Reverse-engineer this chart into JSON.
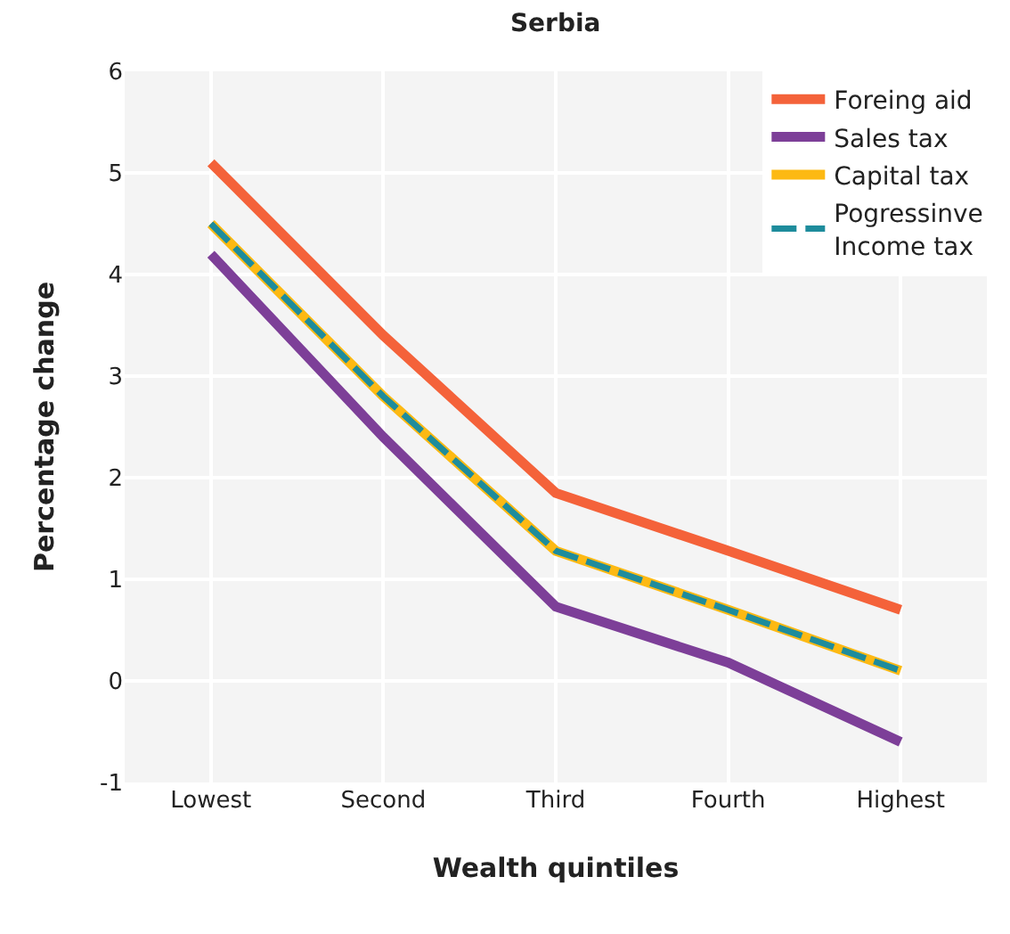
{
  "chart_data": {
    "type": "line",
    "title": "Serbia",
    "xlabel": "Wealth quintiles",
    "ylabel": "Percentage change",
    "categories": [
      "Lowest",
      "Second",
      "Third",
      "Fourth",
      "Highest"
    ],
    "series": [
      {
        "name": "Foreing aid",
        "color": "#f4623a",
        "values": [
          5.1,
          3.4,
          1.85,
          1.28,
          0.7
        ]
      },
      {
        "name": "Sales tax",
        "color": "#7d3f98",
        "values": [
          4.2,
          2.4,
          0.73,
          0.18,
          -0.6
        ]
      },
      {
        "name": "Capital tax",
        "color": "#fdb913",
        "values": [
          4.5,
          2.8,
          1.28,
          0.7,
          0.1
        ]
      },
      {
        "name": "Pogressinve Income tax",
        "color": "#1e8c9c",
        "values": [
          4.5,
          2.8,
          1.28,
          0.7,
          0.1
        ],
        "line_style": "dashed"
      }
    ],
    "ylim": [
      -1,
      6
    ],
    "yticks": [
      -1,
      0,
      1,
      2,
      3,
      4,
      5,
      6
    ],
    "grid": true,
    "legend": "top right",
    "marker": "none"
  }
}
